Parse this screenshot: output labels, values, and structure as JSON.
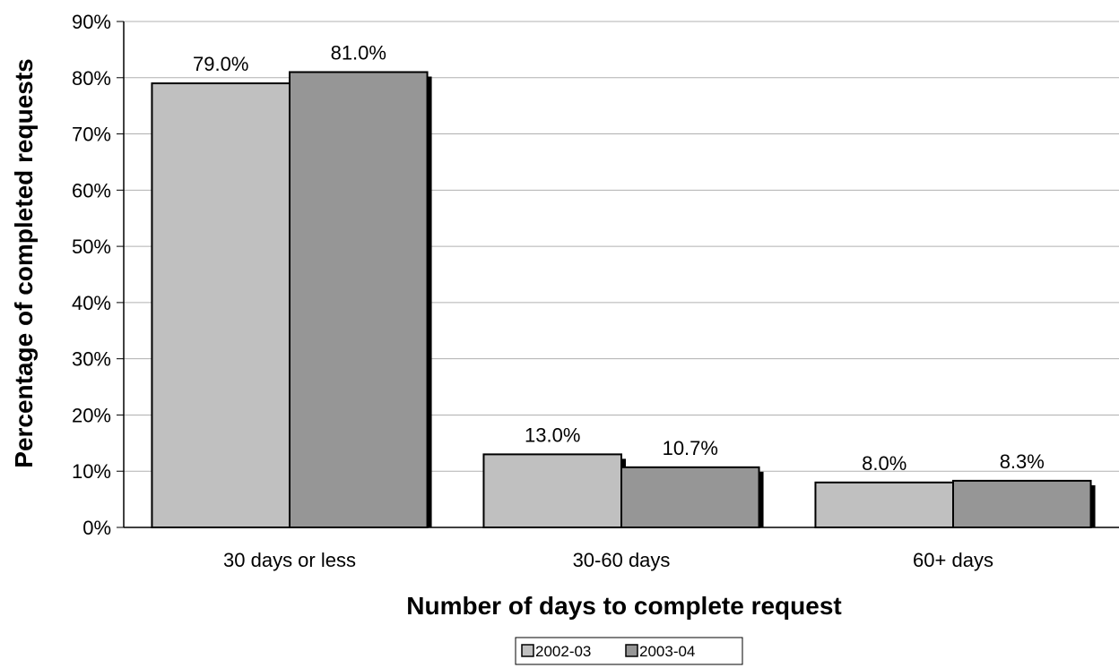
{
  "chart_data": {
    "type": "bar",
    "title": "",
    "xlabel": "Number of days to complete request",
    "ylabel": "Percentage of completed requests",
    "categories": [
      "30 days or less",
      "30-60 days",
      "60+ days"
    ],
    "series": [
      {
        "name": "2002-03",
        "values": [
          79.0,
          13.0,
          8.0
        ],
        "labels": [
          "79.0%",
          "13.0%",
          "8.0%"
        ],
        "color": "#c0c0c0"
      },
      {
        "name": "2003-04",
        "values": [
          81.0,
          10.7,
          8.3
        ],
        "labels": [
          "81.0%",
          "10.7%",
          "8.3%"
        ],
        "color": "#969696"
      }
    ],
    "ylim": [
      0,
      90
    ],
    "y_ticks": [
      0,
      10,
      20,
      30,
      40,
      50,
      60,
      70,
      80,
      90
    ],
    "y_tick_labels": [
      "0%",
      "10%",
      "20%",
      "30%",
      "40%",
      "50%",
      "60%",
      "70%",
      "80%",
      "90%"
    ],
    "grid": true,
    "legend_position": "bottom"
  }
}
